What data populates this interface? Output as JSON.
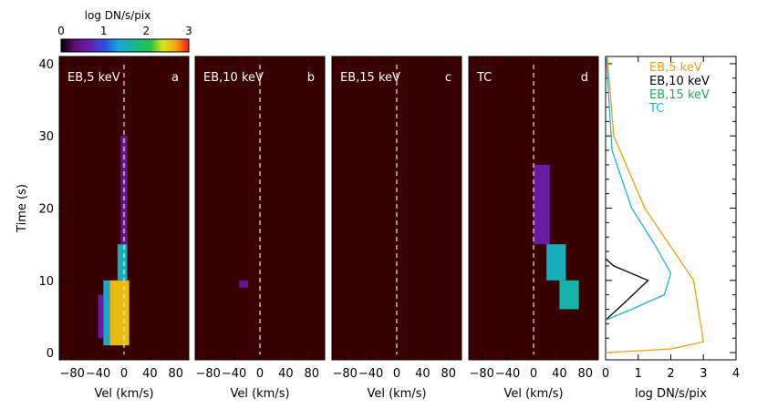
{
  "colors": {
    "background": "#3a0000",
    "dashed": "#f4e7d6",
    "eb5": "#f39c12",
    "eb10": "#000000",
    "eb15": "#1ea95a",
    "tc": "#1cb3e6"
  },
  "colorbar": {
    "title": "log DN/s/pix",
    "ticks": [
      "0",
      "1",
      "2",
      "3"
    ],
    "range": [
      0,
      3
    ]
  },
  "chart_data": [
    {
      "type": "heatmap",
      "panel": "a",
      "label": "EB,5 keV",
      "xlabel": "Vel (km/s)",
      "ylabel": "Time (s)",
      "xlim": [
        -100,
        100
      ],
      "ylim": [
        -1,
        41
      ],
      "xticks": [
        "−80",
        "−40",
        "0",
        "40",
        "80"
      ],
      "yticks": [
        "0",
        "10",
        "20",
        "30",
        "40"
      ],
      "colorscale": "log DN/s/pix",
      "features": [
        {
          "t": [
            1,
            10
          ],
          "v_range": [
            -22,
            8
          ],
          "value": 2.6
        },
        {
          "t": [
            1,
            10
          ],
          "v_range": [
            -32,
            -22
          ],
          "value": 1.4
        },
        {
          "t": [
            2,
            8
          ],
          "v_range": [
            -40,
            -32
          ],
          "value": 0.6
        },
        {
          "t": [
            10,
            15
          ],
          "v_range": [
            -10,
            5
          ],
          "value": 1.5
        },
        {
          "t": [
            15,
            30
          ],
          "v_range": [
            -5,
            5
          ],
          "value": 0.5
        }
      ]
    },
    {
      "type": "heatmap",
      "panel": "b",
      "label": "EB,10 keV",
      "xlabel": "Vel (km/s)",
      "xlim": [
        -100,
        100
      ],
      "xticks": [
        "−80",
        "−40",
        "0",
        "40",
        "80"
      ],
      "features": [
        {
          "t": [
            9,
            10
          ],
          "v_range": [
            -32,
            -18
          ],
          "value": 0.5
        }
      ]
    },
    {
      "type": "heatmap",
      "panel": "c",
      "label": "EB,15 keV",
      "xlabel": "Vel (km/s)",
      "xlim": [
        -100,
        100
      ],
      "xticks": [
        "−80",
        "−40",
        "0",
        "40",
        "80"
      ],
      "features": []
    },
    {
      "type": "heatmap",
      "panel": "d",
      "label": "TC",
      "xlabel": "Vel (km/s)",
      "xlim": [
        -100,
        100
      ],
      "xticks": [
        "−80",
        "−40",
        "0",
        "40",
        "80"
      ],
      "features": [
        {
          "t": [
            6,
            10
          ],
          "v_range": [
            40,
            70
          ],
          "value": 1.6
        },
        {
          "t": [
            10,
            15
          ],
          "v_range": [
            20,
            50
          ],
          "value": 1.5
        },
        {
          "t": [
            15,
            26
          ],
          "v_range": [
            0,
            25
          ],
          "value": 0.6
        }
      ]
    },
    {
      "type": "line",
      "panel": "e",
      "xlabel": "log DN/s/pix",
      "xlim": [
        0,
        4
      ],
      "ylim": [
        -1,
        41
      ],
      "xticks": [
        "0",
        "1",
        "2",
        "3",
        "4"
      ],
      "series": [
        {
          "name": "EB,5 keV",
          "points": [
            [
              0,
              0
            ],
            [
              2.0,
              0.5
            ],
            [
              3.0,
              1.5
            ],
            [
              2.7,
              10
            ],
            [
              1.2,
              20
            ],
            [
              0.25,
              30
            ],
            [
              0.05,
              41
            ]
          ]
        },
        {
          "name": "EB,10 keV",
          "points": [
            [
              0,
              4.5
            ],
            [
              0.6,
              7
            ],
            [
              1.3,
              10
            ],
            [
              0.25,
              12
            ],
            [
              0,
              13
            ]
          ]
        },
        {
          "name": "EB,15 keV",
          "points": []
        },
        {
          "name": "TC",
          "points": [
            [
              0,
              4.5
            ],
            [
              0.8,
              6
            ],
            [
              1.8,
              8
            ],
            [
              2.0,
              11
            ],
            [
              1.5,
              15
            ],
            [
              0.8,
              20
            ],
            [
              0.2,
              28
            ],
            [
              0.02,
              41
            ]
          ]
        }
      ]
    }
  ]
}
